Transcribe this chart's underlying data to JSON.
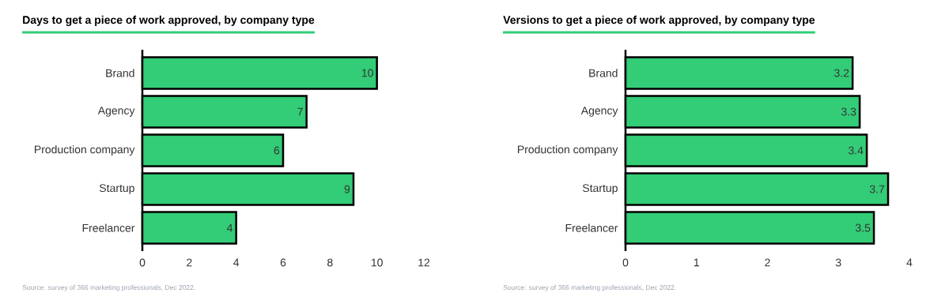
{
  "chart_data": [
    {
      "type": "bar",
      "orientation": "horizontal",
      "title": "Days to get a piece of work approved, by company type",
      "categories": [
        "Brand",
        "Agency",
        "Production company",
        "Startup",
        "Freelancer"
      ],
      "values": [
        10,
        7,
        6,
        9,
        4
      ],
      "color": "#33cc77",
      "data_labels": true,
      "xlim": [
        0,
        12
      ],
      "xticks": [
        0,
        2,
        4,
        6,
        8,
        10,
        12
      ],
      "annotations": [
        "Source: survey of 366 marketing professionals, Dec 2022."
      ]
    },
    {
      "type": "bar",
      "orientation": "horizontal",
      "title": "Versions to get a piece of work approved, by company type",
      "categories": [
        "Brand",
        "Agency",
        "Production company",
        "Startup",
        "Freelancer"
      ],
      "values": [
        3.2,
        3.3,
        3.4,
        3.7,
        3.5
      ],
      "color": "#33cc77",
      "data_labels": true,
      "xlim": [
        0,
        4
      ],
      "xticks": [
        0,
        1,
        2,
        3,
        4
      ],
      "annotations": [
        "Source: survey of 366 marketing professionals, Dec 2022."
      ]
    }
  ]
}
